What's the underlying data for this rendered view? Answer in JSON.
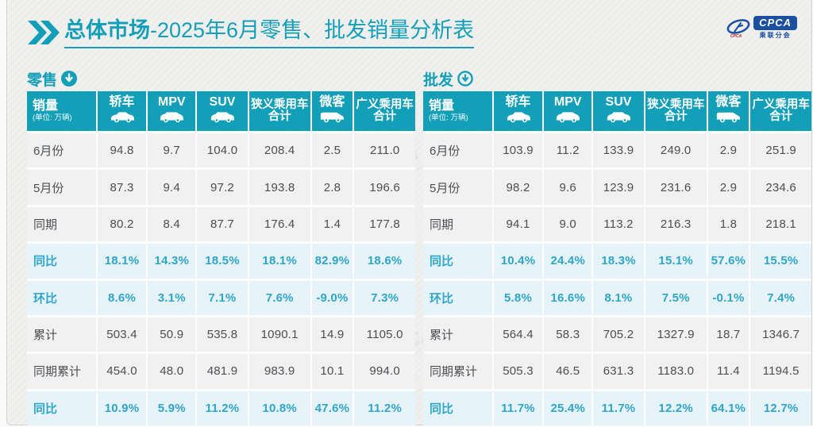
{
  "title": {
    "bold": "总体市场",
    "rest": "-2025年6月零售、批发销量分析表"
  },
  "logo": {
    "brand": "CPCA",
    "sub": "乘联分会",
    "swoosh_icon": "cpca-swoosh-icon"
  },
  "colors": {
    "accent_teal": "#149fb8",
    "percent_text": "#2fa5c9",
    "row_highlight": "#e6f4f9",
    "row_normal": "#f1f1f2",
    "logo_blue": "#1b4fa0"
  },
  "columns": [
    {
      "label": "销量",
      "sub": "(单位: 万辆)",
      "icon": null
    },
    {
      "label": "轿车",
      "icon": "sedan-icon"
    },
    {
      "label": "MPV",
      "icon": "mpv-icon"
    },
    {
      "label": "SUV",
      "icon": "suv-icon"
    },
    {
      "label": "狭义乘用车",
      "label2": "合计",
      "icon": null
    },
    {
      "label": "微客",
      "icon": "van-icon"
    },
    {
      "label": "广义乘用车",
      "label2": "合计",
      "icon": null
    }
  ],
  "chart_data": [
    {
      "type": "table",
      "name": "零售",
      "arrow_icon": "download-circle-filled-icon",
      "rows": [
        {
          "label": "6月份",
          "highlight": false,
          "values": [
            "94.8",
            "9.7",
            "104.0",
            "208.4",
            "2.5",
            "211.0"
          ]
        },
        {
          "label": "5月份",
          "highlight": false,
          "values": [
            "87.3",
            "9.4",
            "97.2",
            "193.8",
            "2.8",
            "196.6"
          ]
        },
        {
          "label": "同期",
          "highlight": false,
          "values": [
            "80.2",
            "8.4",
            "87.7",
            "176.4",
            "1.4",
            "177.8"
          ]
        },
        {
          "label": "同比",
          "highlight": true,
          "values": [
            "18.1%",
            "14.3%",
            "18.5%",
            "18.1%",
            "82.9%",
            "18.6%"
          ]
        },
        {
          "label": "环比",
          "highlight": true,
          "values": [
            "8.6%",
            "3.1%",
            "7.1%",
            "7.6%",
            "-9.0%",
            "7.3%"
          ]
        },
        {
          "label": "累计",
          "highlight": false,
          "values": [
            "503.4",
            "50.9",
            "535.8",
            "1090.1",
            "14.9",
            "1105.0"
          ]
        },
        {
          "label": "同期累计",
          "highlight": false,
          "values": [
            "454.0",
            "48.0",
            "481.9",
            "983.9",
            "10.1",
            "994.0"
          ]
        },
        {
          "label": "同比",
          "highlight": true,
          "values": [
            "10.9%",
            "5.9%",
            "11.2%",
            "10.8%",
            "47.6%",
            "11.2%"
          ]
        }
      ]
    },
    {
      "type": "table",
      "name": "批发",
      "arrow_icon": "download-circle-outline-icon",
      "rows": [
        {
          "label": "6月份",
          "highlight": false,
          "values": [
            "103.9",
            "11.2",
            "133.9",
            "249.0",
            "2.9",
            "251.9"
          ]
        },
        {
          "label": "5月份",
          "highlight": false,
          "values": [
            "98.2",
            "9.6",
            "123.9",
            "231.6",
            "2.9",
            "234.6"
          ]
        },
        {
          "label": "同期",
          "highlight": false,
          "values": [
            "94.1",
            "9.0",
            "113.2",
            "216.3",
            "1.8",
            "218.1"
          ]
        },
        {
          "label": "同比",
          "highlight": true,
          "values": [
            "10.4%",
            "24.4%",
            "18.3%",
            "15.1%",
            "57.6%",
            "15.5%"
          ]
        },
        {
          "label": "环比",
          "highlight": true,
          "values": [
            "5.8%",
            "16.6%",
            "8.1%",
            "7.5%",
            "-0.1%",
            "7.4%"
          ]
        },
        {
          "label": "累计",
          "highlight": false,
          "values": [
            "564.4",
            "58.3",
            "705.2",
            "1327.9",
            "18.7",
            "1346.7"
          ]
        },
        {
          "label": "同期累计",
          "highlight": false,
          "values": [
            "505.3",
            "46.5",
            "631.3",
            "1183.0",
            "11.4",
            "1194.5"
          ]
        },
        {
          "label": "同比",
          "highlight": true,
          "values": [
            "11.7%",
            "25.4%",
            "11.7%",
            "12.2%",
            "64.1%",
            "12.7%"
          ]
        }
      ]
    }
  ],
  "watermark_text": "CPCA"
}
